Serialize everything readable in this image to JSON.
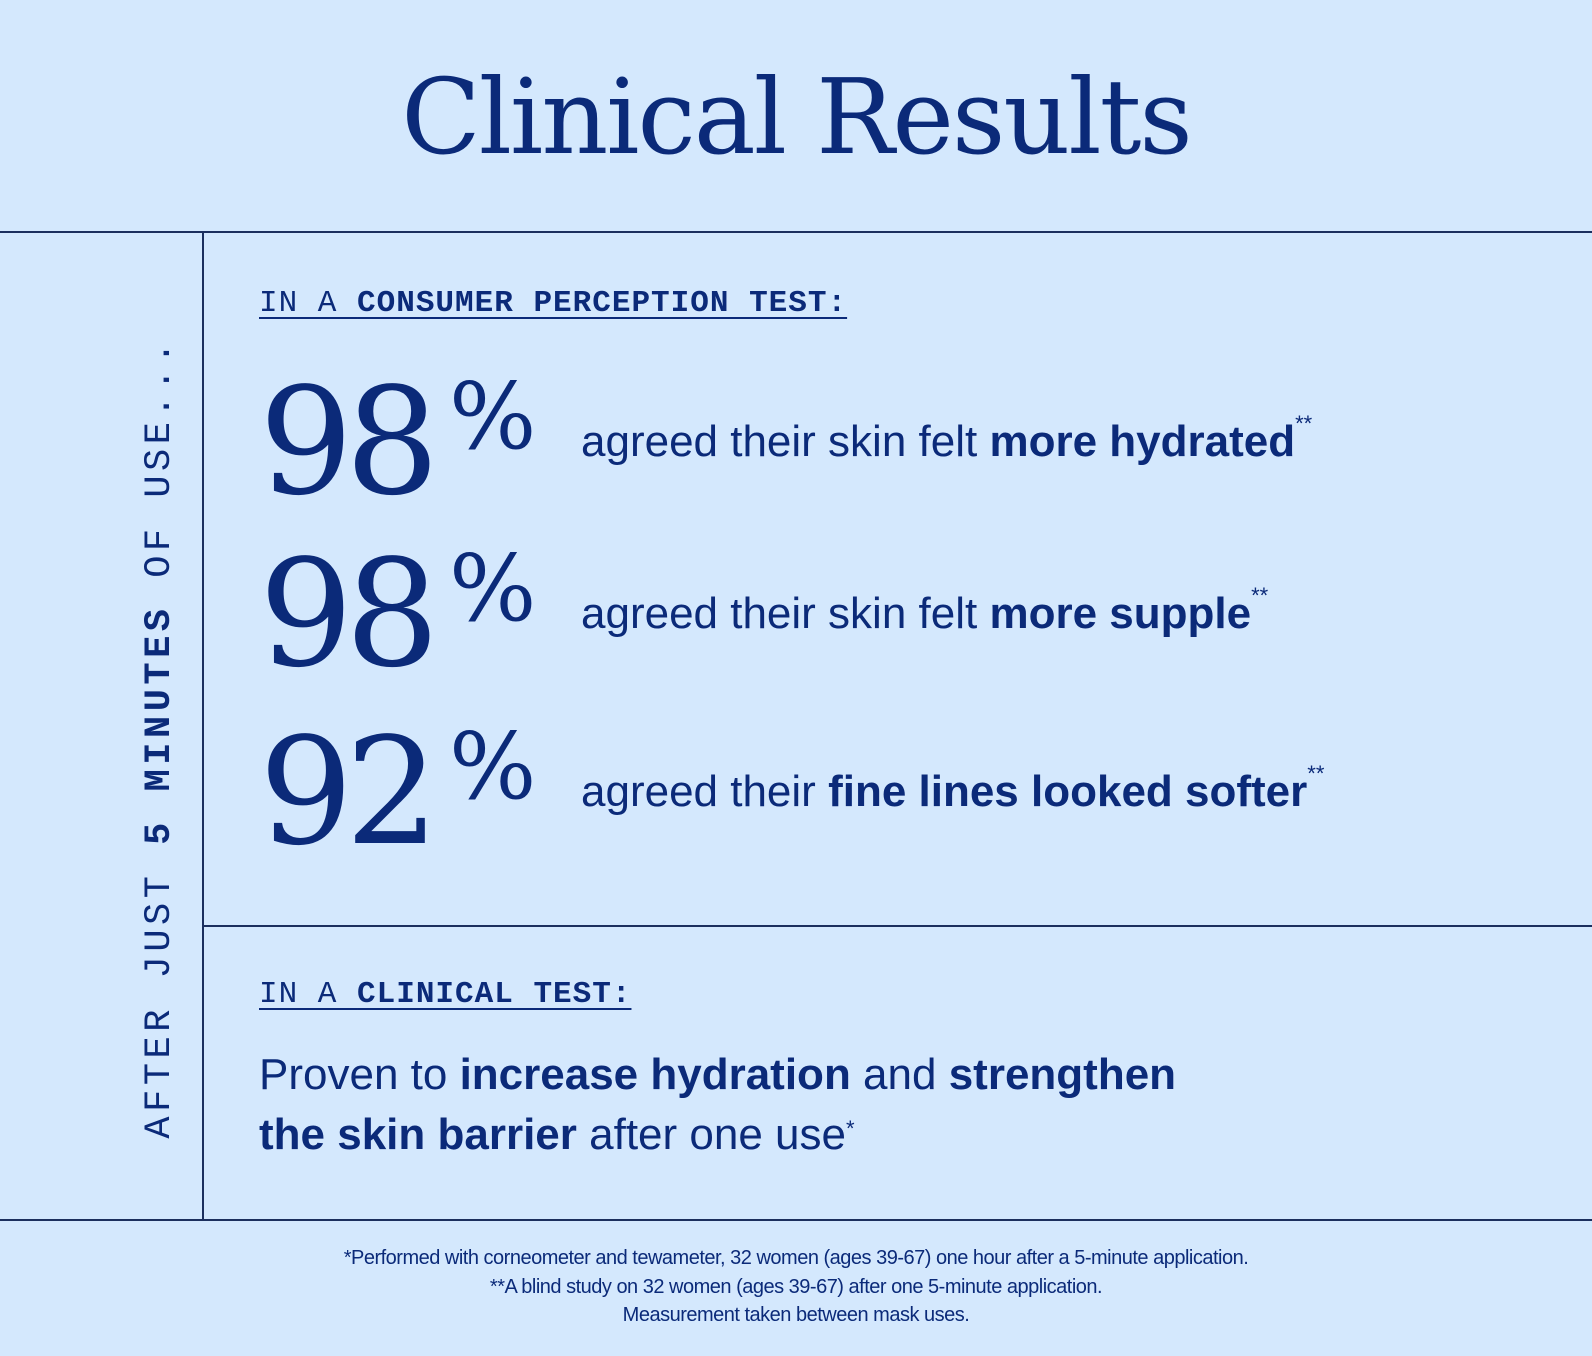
{
  "title": "Clinical Results",
  "side_label": {
    "prefix": "AFTER JUST ",
    "bold": "5 MINUTES",
    "suffix": " OF USE..."
  },
  "consumer_section": {
    "heading_prefix": "IN A ",
    "heading_bold": "CONSUMER PERCEPTION TEST:",
    "stats": [
      {
        "value": "98",
        "unit": "%",
        "text": "agreed their skin felt ",
        "bold": "more hydrated",
        "mark": "**"
      },
      {
        "value": "98",
        "unit": "%",
        "text": "agreed their skin felt ",
        "bold": "more supple",
        "mark": "**"
      },
      {
        "value": "92",
        "unit": "%",
        "text": "agreed their ",
        "bold": "fine lines looked softer",
        "mark": "**"
      }
    ]
  },
  "clinical_section": {
    "heading_prefix": "IN A ",
    "heading_bold": "CLINICAL TEST:",
    "p1": "Proven to ",
    "b1": "increase hydration",
    "p2": " and ",
    "b2": "strengthen",
    "b3": "the skin barrier",
    "p3": " after one use",
    "mark": "*"
  },
  "footnotes": [
    "*Performed with corneometer and tewameter, 32 women (ages 39-67) one hour after a 5-minute application.",
    "**A blind study on 32 women (ages 39-67) after one 5-minute application.",
    "Measurement taken between mask uses."
  ],
  "colors": {
    "background": "#d4e8fd",
    "text": "#0b2a79",
    "rule": "#1b2f5e"
  }
}
